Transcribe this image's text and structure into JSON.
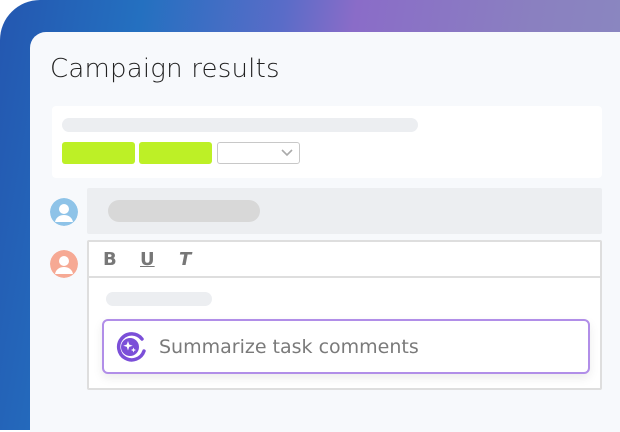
{
  "page": {
    "title": "Campaign results"
  },
  "toolbar": {
    "bold": "B",
    "underline": "U",
    "text": "T"
  },
  "ai_action": {
    "label": "Summarize task comments",
    "icon": "ai-sparkle-icon"
  },
  "colors": {
    "accent_green": "#bdf026",
    "ai_purple": "#7b4fd8",
    "avatar_blue": "#8ec3e8",
    "avatar_salmon": "#f6a994"
  }
}
